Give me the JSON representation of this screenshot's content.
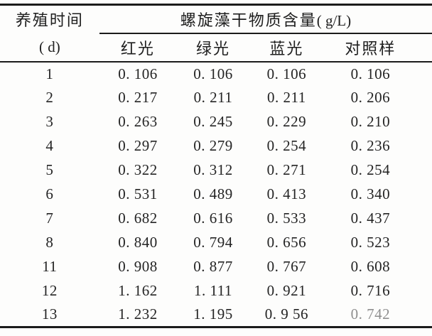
{
  "table": {
    "col1_header_line1": "养殖时间",
    "col1_header_line2": "( d)",
    "span_header_cn": "螺旋藻干物质含量",
    "span_header_unit": "( g/L)",
    "sub_headers": [
      "红光",
      "绿光",
      "蓝光",
      "对照样"
    ],
    "rows": [
      {
        "day": "1",
        "values": [
          "0. 106",
          "0. 106",
          "0. 106",
          "0. 106"
        ]
      },
      {
        "day": "2",
        "values": [
          "0. 217",
          "0. 211",
          "0. 211",
          "0. 206"
        ]
      },
      {
        "day": "3",
        "values": [
          "0. 263",
          "0. 245",
          "0. 229",
          "0. 210"
        ]
      },
      {
        "day": "4",
        "values": [
          "0. 297",
          "0. 279",
          "0. 254",
          "0. 236"
        ]
      },
      {
        "day": "5",
        "values": [
          "0. 322",
          "0. 312",
          "0. 271",
          "0. 254"
        ]
      },
      {
        "day": "6",
        "values": [
          "0. 531",
          "0. 489",
          "0. 413",
          "0. 340"
        ]
      },
      {
        "day": "7",
        "values": [
          "0. 682",
          "0. 616",
          "0. 533",
          "0. 437"
        ]
      },
      {
        "day": "8",
        "values": [
          "0. 840",
          "0. 794",
          "0. 656",
          "0. 523"
        ]
      },
      {
        "day": "11",
        "values": [
          "0. 908",
          "0. 877",
          "0. 767",
          "0. 608"
        ]
      },
      {
        "day": "12",
        "values": [
          "1. 162",
          "1. 111",
          "0. 921",
          "0. 716"
        ]
      },
      {
        "day": "13",
        "values": [
          "1. 232",
          "1. 195",
          "0. 9 56",
          "0. 742"
        ]
      }
    ]
  },
  "chart_data": {
    "type": "table",
    "title": "螺旋藻干物质含量(g/L)",
    "row_label": "养殖时间(d)",
    "days": [
      1,
      2,
      3,
      4,
      5,
      6,
      7,
      8,
      11,
      12,
      13
    ],
    "series": [
      {
        "name": "红光",
        "values": [
          0.106,
          0.217,
          0.263,
          0.297,
          0.322,
          0.531,
          0.682,
          0.84,
          0.908,
          1.162,
          1.232
        ]
      },
      {
        "name": "绿光",
        "values": [
          0.106,
          0.211,
          0.245,
          0.279,
          0.312,
          0.489,
          0.616,
          0.794,
          0.877,
          1.111,
          1.195
        ]
      },
      {
        "name": "蓝光",
        "values": [
          0.106,
          0.211,
          0.229,
          0.254,
          0.271,
          0.413,
          0.533,
          0.656,
          0.767,
          0.921,
          0.956
        ]
      },
      {
        "name": "对照样",
        "values": [
          0.106,
          0.206,
          0.21,
          0.236,
          0.254,
          0.34,
          0.437,
          0.523,
          0.608,
          0.716,
          0.742
        ]
      }
    ]
  }
}
